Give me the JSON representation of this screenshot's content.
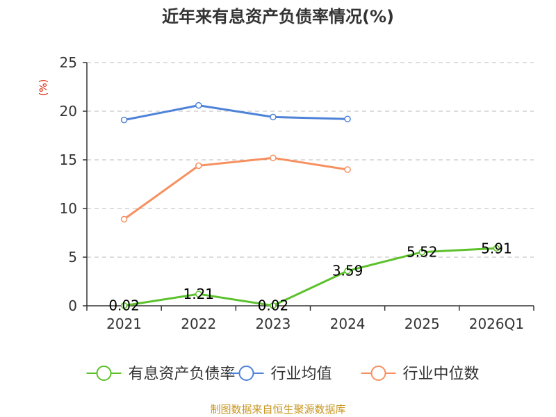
{
  "chart_data": {
    "type": "line",
    "title": "近年来有息资产负债率情况(%)",
    "ylabel": "(%)",
    "xlabel": "",
    "categories": [
      "2021",
      "2022",
      "2023",
      "2024",
      "2025",
      "2026Q1"
    ],
    "ylim": [
      0,
      25
    ],
    "yticks": [
      0,
      5,
      10,
      15,
      20,
      25
    ],
    "grid": true,
    "legend_position": "bottom",
    "series": [
      {
        "name": "有息资产负债率",
        "color": "#5cc12b",
        "values": [
          0.02,
          1.21,
          0.02,
          3.59,
          5.52,
          5.91
        ],
        "data_labels": [
          "0.02",
          "1.21",
          "0.02",
          "3.59",
          "5.52",
          "5.91"
        ]
      },
      {
        "name": "行业均值",
        "color": "#4f83d8",
        "values": [
          19.1,
          20.6,
          19.4,
          19.2,
          null,
          null
        ]
      },
      {
        "name": "行业中位数",
        "color": "#f79060",
        "values": [
          8.9,
          14.4,
          15.2,
          14.0,
          null,
          null
        ]
      }
    ]
  },
  "source": "制图数据来自恒生聚源数据库"
}
